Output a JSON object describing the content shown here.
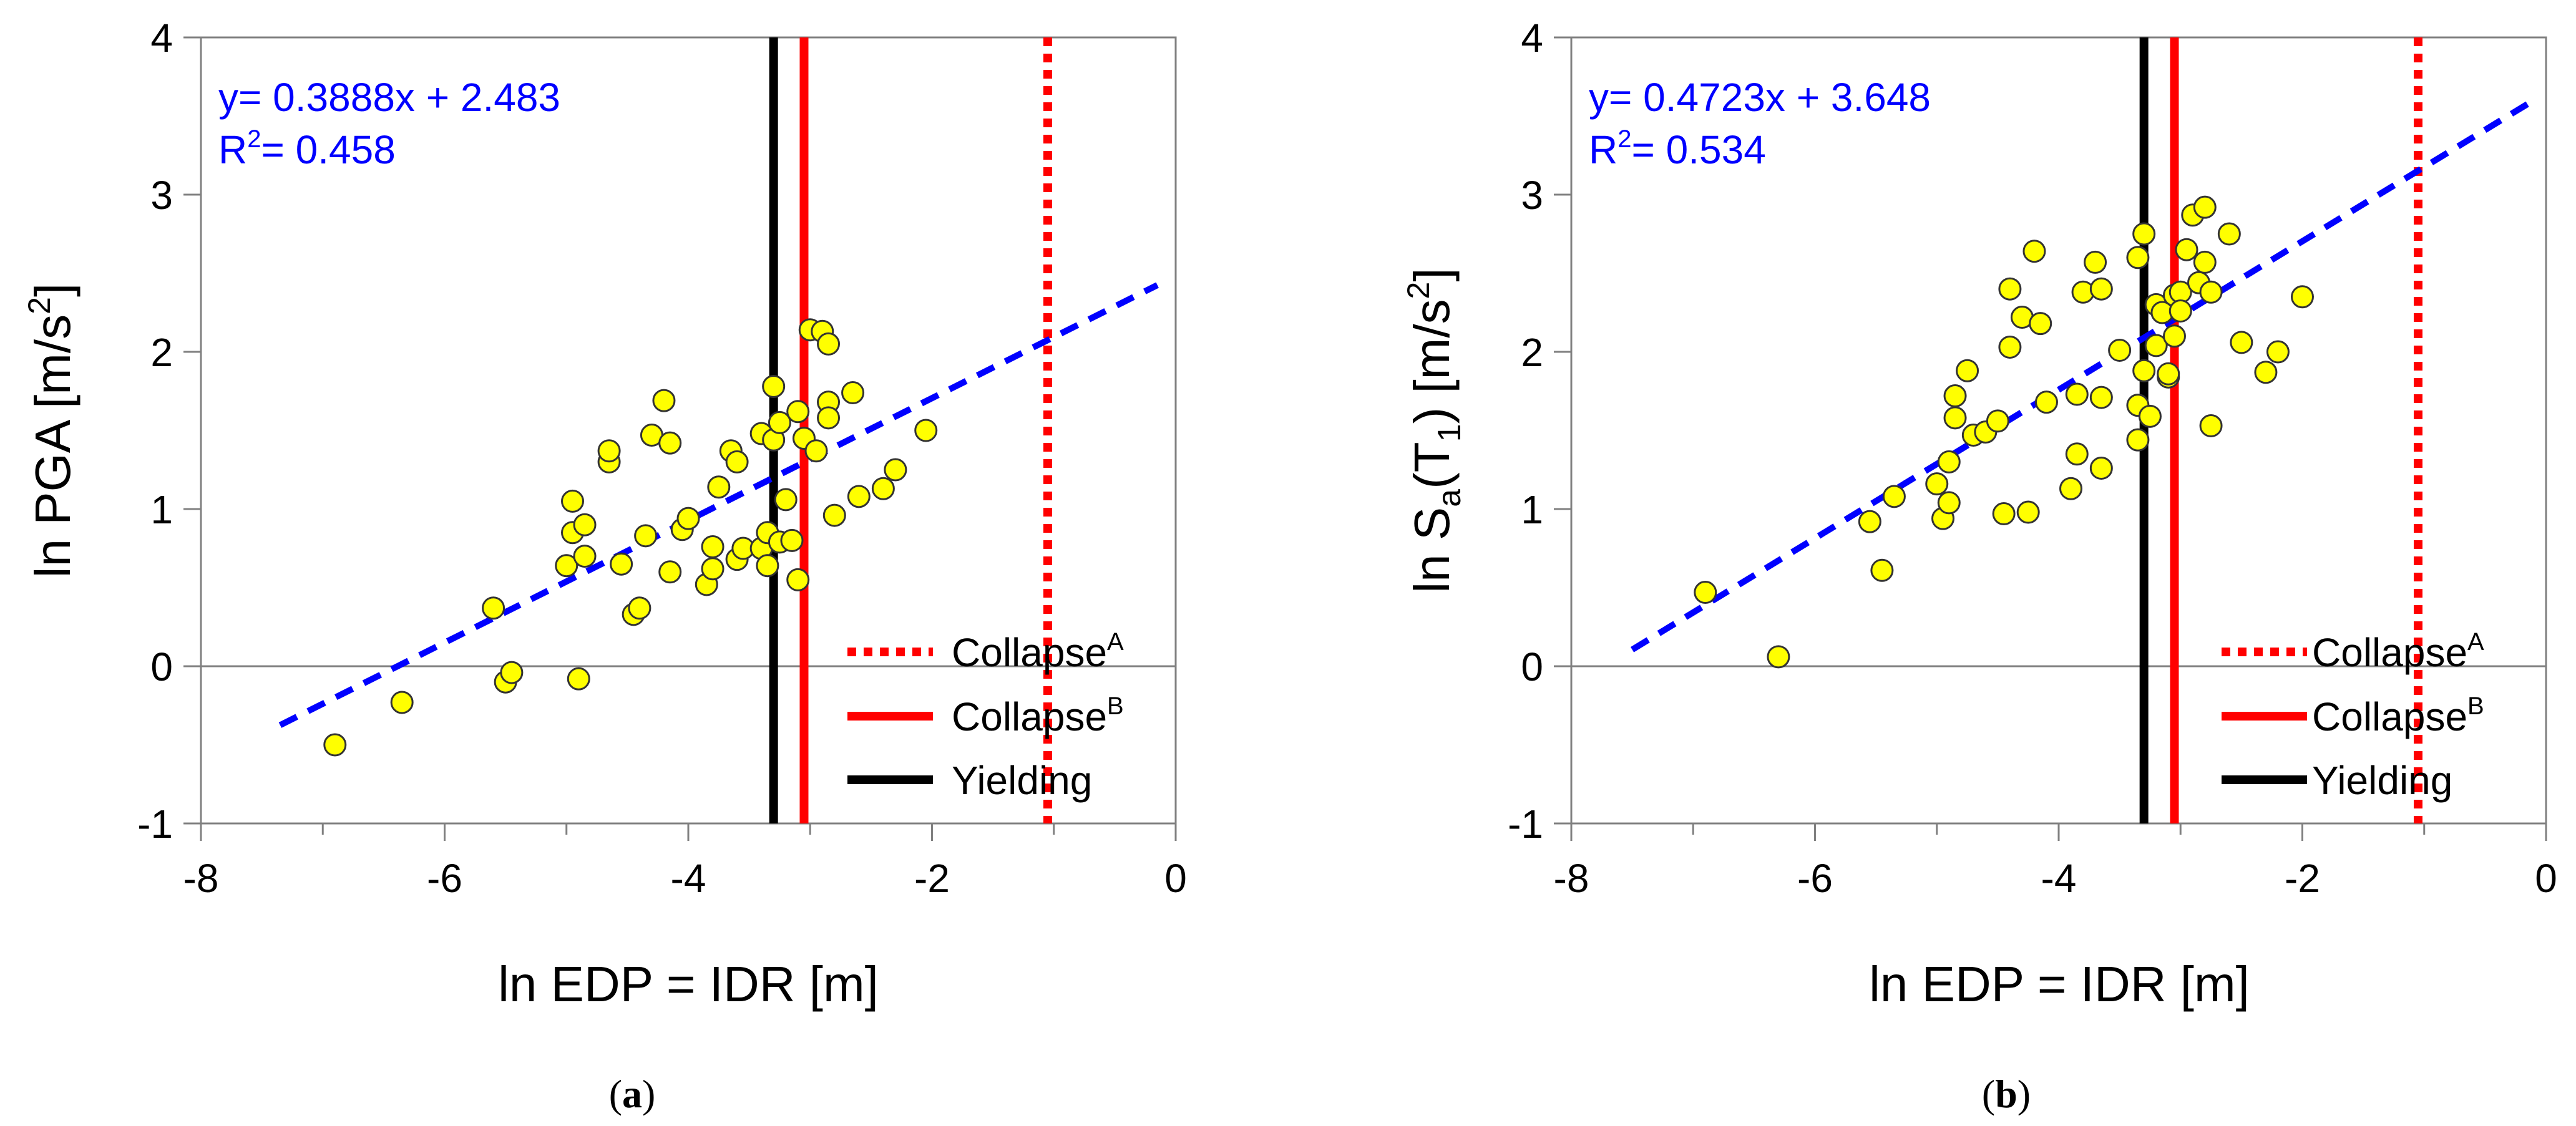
{
  "chart_data": [
    {
      "type": "scatter",
      "panel_label": "(a)",
      "panel_letter": "a",
      "xlabel": "ln EDP = IDR  [m]",
      "ylabel": "ln PGA  [m/s2]",
      "ylabel_main": "ln PGA  [m/s",
      "ylabel_sup": "2",
      "ylabel_end": "]",
      "xlim": [
        -8,
        0
      ],
      "ylim": [
        -1,
        4
      ],
      "xticks": [
        "-8",
        "-6",
        "-4",
        "-2",
        "0"
      ],
      "yticks": [
        "-1",
        "0",
        "1",
        "2",
        "3",
        "4"
      ],
      "equation": "y= 0.3888x + 2.483",
      "r2_label": "R",
      "r2_sup": "2",
      "r2_value": "= 0.458",
      "fit": {
        "slope": 0.3888,
        "intercept": 2.483,
        "x_range": [
          -7.35,
          -0.15
        ]
      },
      "vlines": {
        "yielding": -3.3,
        "collapse_b": -3.05,
        "collapse_a": -1.05
      },
      "legend": [
        {
          "name": "Collapse",
          "sup": "A",
          "style": "dotted",
          "color": "#ff0000"
        },
        {
          "name": "Collapse",
          "sup": "B",
          "style": "solid",
          "color": "#ff0000"
        },
        {
          "name": "Yielding",
          "sup": "",
          "style": "solid",
          "color": "#000000"
        }
      ],
      "points": [
        [
          -6.9,
          -0.5
        ],
        [
          -6.35,
          -0.23
        ],
        [
          -5.6,
          0.37
        ],
        [
          -5.5,
          -0.1
        ],
        [
          -5.45,
          -0.04
        ],
        [
          -4.9,
          -0.08
        ],
        [
          -5.0,
          0.64
        ],
        [
          -4.95,
          0.85
        ],
        [
          -4.95,
          1.05
        ],
        [
          -4.85,
          0.9
        ],
        [
          -4.85,
          0.7
        ],
        [
          -4.65,
          1.3
        ],
        [
          -4.65,
          1.37
        ],
        [
          -4.55,
          0.65
        ],
        [
          -4.45,
          0.33
        ],
        [
          -4.4,
          0.37
        ],
        [
          -4.35,
          0.83
        ],
        [
          -4.3,
          1.47
        ],
        [
          -4.2,
          1.69
        ],
        [
          -4.15,
          1.42
        ],
        [
          -4.15,
          0.6
        ],
        [
          -4.05,
          0.87
        ],
        [
          -4.0,
          0.94
        ],
        [
          -3.85,
          0.52
        ],
        [
          -3.8,
          0.62
        ],
        [
          -3.8,
          0.76
        ],
        [
          -3.75,
          1.14
        ],
        [
          -3.65,
          1.37
        ],
        [
          -3.6,
          1.3
        ],
        [
          -3.6,
          0.68
        ],
        [
          -3.55,
          0.75
        ],
        [
          -3.4,
          0.75
        ],
        [
          -3.4,
          1.48
        ],
        [
          -3.35,
          0.64
        ],
        [
          -3.35,
          0.85
        ],
        [
          -3.3,
          1.78
        ],
        [
          -3.3,
          1.44
        ],
        [
          -3.25,
          1.55
        ],
        [
          -3.25,
          0.79
        ],
        [
          -3.2,
          1.06
        ],
        [
          -3.15,
          0.8
        ],
        [
          -3.1,
          0.55
        ],
        [
          -3.1,
          1.62
        ],
        [
          -3.05,
          1.45
        ],
        [
          -3.0,
          2.14
        ],
        [
          -2.95,
          1.37
        ],
        [
          -2.9,
          2.13
        ],
        [
          -2.85,
          2.05
        ],
        [
          -2.85,
          1.68
        ],
        [
          -2.85,
          1.58
        ],
        [
          -2.8,
          0.96
        ],
        [
          -2.65,
          1.74
        ],
        [
          -2.6,
          1.08
        ],
        [
          -2.4,
          1.13
        ],
        [
          -2.3,
          1.25
        ],
        [
          -2.05,
          1.5
        ]
      ]
    },
    {
      "type": "scatter",
      "panel_label": "(b)",
      "panel_letter": "b",
      "xlabel": "ln EDP = IDR  [m]",
      "ylabel": "ln Sa(T1)  [m/s2]",
      "ylabel_main": "ln S",
      "ylabel_sub": "a",
      "ylabel_mid": "(T",
      "ylabel_sub2": "1",
      "ylabel_rest": ")  [m/s",
      "ylabel_sup": "2",
      "ylabel_end": "]",
      "xlim": [
        -8,
        0
      ],
      "ylim": [
        -1,
        4
      ],
      "xticks": [
        "-8",
        "-6",
        "-4",
        "-2",
        "0"
      ],
      "yticks": [
        "-1",
        "0",
        "1",
        "2",
        "3",
        "4"
      ],
      "equation": "y= 0.4723x + 3.648",
      "r2_label": "R",
      "r2_sup": "2",
      "r2_value": "= 0.534",
      "fit": {
        "slope": 0.4723,
        "intercept": 3.648,
        "x_range": [
          -7.5,
          -0.1
        ]
      },
      "vlines": {
        "yielding": -3.3,
        "collapse_b": -3.05,
        "collapse_a": -1.05
      },
      "legend": [
        {
          "name": "Collapse",
          "sup": "A",
          "style": "dotted",
          "color": "#ff0000"
        },
        {
          "name": "Collapse",
          "sup": "B",
          "style": "solid",
          "color": "#ff0000"
        },
        {
          "name": "Yielding",
          "sup": "",
          "style": "solid",
          "color": "#000000"
        }
      ],
      "points": [
        [
          -6.9,
          0.47
        ],
        [
          -6.3,
          0.06
        ],
        [
          -5.55,
          0.92
        ],
        [
          -5.45,
          0.61
        ],
        [
          -5.35,
          1.08
        ],
        [
          -5.0,
          1.16
        ],
        [
          -4.95,
          0.94
        ],
        [
          -4.9,
          1.3
        ],
        [
          -4.9,
          1.04
        ],
        [
          -4.85,
          1.72
        ],
        [
          -4.85,
          1.58
        ],
        [
          -4.75,
          1.88
        ],
        [
          -4.7,
          1.47
        ],
        [
          -4.6,
          1.49
        ],
        [
          -4.5,
          1.56
        ],
        [
          -4.45,
          0.97
        ],
        [
          -4.4,
          2.4
        ],
        [
          -4.4,
          2.03
        ],
        [
          -4.3,
          2.22
        ],
        [
          -4.25,
          0.98
        ],
        [
          -4.2,
          2.64
        ],
        [
          -4.15,
          2.18
        ],
        [
          -4.1,
          1.68
        ],
        [
          -3.9,
          1.13
        ],
        [
          -3.85,
          1.35
        ],
        [
          -3.85,
          1.73
        ],
        [
          -3.8,
          2.38
        ],
        [
          -3.7,
          2.57
        ],
        [
          -3.65,
          2.4
        ],
        [
          -3.65,
          1.71
        ],
        [
          -3.65,
          1.26
        ],
        [
          -3.5,
          2.01
        ],
        [
          -3.35,
          1.44
        ],
        [
          -3.35,
          1.66
        ],
        [
          -3.35,
          2.6
        ],
        [
          -3.3,
          2.75
        ],
        [
          -3.3,
          1.88
        ],
        [
          -3.25,
          1.59
        ],
        [
          -3.2,
          2.04
        ],
        [
          -3.2,
          2.3
        ],
        [
          -3.15,
          2.25
        ],
        [
          -3.1,
          1.84
        ],
        [
          -3.1,
          1.86
        ],
        [
          -3.05,
          2.1
        ],
        [
          -3.05,
          2.36
        ],
        [
          -3.0,
          2.38
        ],
        [
          -3.0,
          2.26
        ],
        [
          -2.95,
          2.65
        ],
        [
          -2.9,
          2.87
        ],
        [
          -2.85,
          2.44
        ],
        [
          -2.8,
          2.57
        ],
        [
          -2.8,
          2.92
        ],
        [
          -2.75,
          2.38
        ],
        [
          -2.75,
          1.53
        ],
        [
          -2.6,
          2.75
        ],
        [
          -2.5,
          2.06
        ],
        [
          -2.3,
          1.87
        ],
        [
          -2.2,
          2.0
        ],
        [
          -2.0,
          2.35
        ]
      ]
    }
  ]
}
